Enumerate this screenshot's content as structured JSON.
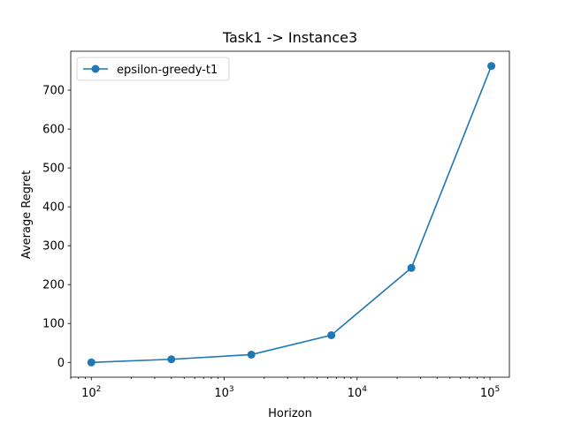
{
  "chart_data": {
    "type": "line",
    "title": "Task1 -> Instance3",
    "xlabel": "Horizon",
    "ylabel": "Average Regret",
    "xscale": "log",
    "xlim": [
      70,
      140000
    ],
    "ylim": [
      -38,
      800
    ],
    "x_ticks": [
      {
        "value": 100,
        "base": "10",
        "exp": "2"
      },
      {
        "value": 1000,
        "base": "10",
        "exp": "3"
      },
      {
        "value": 10000,
        "base": "10",
        "exp": "4"
      },
      {
        "value": 100000,
        "base": "10",
        "exp": "5"
      }
    ],
    "y_ticks": [
      0,
      100,
      200,
      300,
      400,
      500,
      600,
      700
    ],
    "grid": false,
    "legend_position": "top-left",
    "series": [
      {
        "name": "epsilon-greedy-t1",
        "color": "#1f77b4",
        "marker": "circle",
        "x": [
          100,
          400,
          1600,
          6400,
          25600,
          102400
        ],
        "y": [
          0,
          8,
          20,
          70,
          243,
          762
        ]
      }
    ]
  }
}
